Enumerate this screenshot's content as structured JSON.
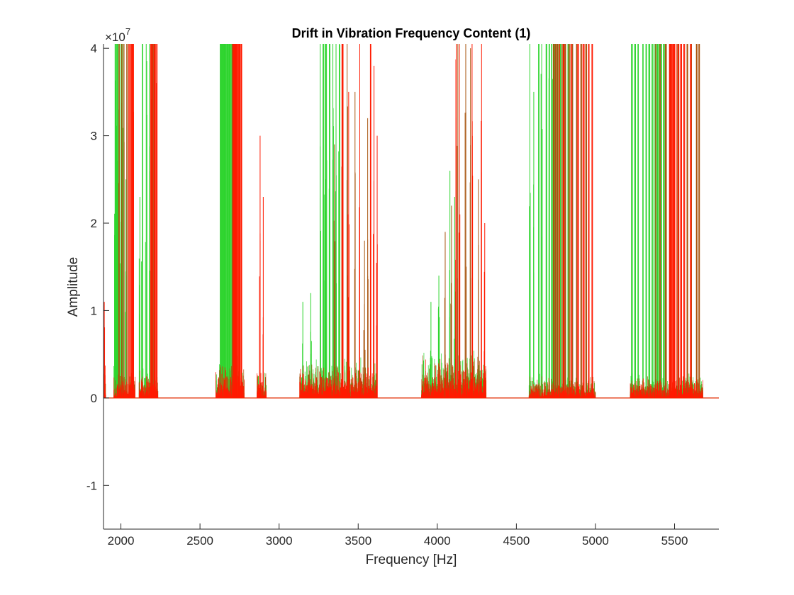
{
  "chart_data": {
    "type": "line",
    "title": "Drift in Vibration Frequency Content (1)",
    "xlabel": "Frequency [Hz]",
    "ylabel": "Amplitude",
    "y_exponent_base": "×10",
    "y_exponent_power": "7",
    "xlim": [
      1890,
      5780
    ],
    "ylim": [
      -1.5,
      4.05
    ],
    "y_scale_factor": 10000000,
    "grid": false,
    "x_ticks": [
      2000,
      2500,
      3000,
      3500,
      4000,
      4500,
      5000,
      5500
    ],
    "x_tick_labels": [
      "2000",
      "2500",
      "3000",
      "3500",
      "4000",
      "4500",
      "5000",
      "5500"
    ],
    "y_ticks": [
      -1,
      0,
      1,
      2,
      3,
      4
    ],
    "y_tick_labels": [
      "-1",
      "0",
      "1",
      "2",
      "3",
      "4"
    ],
    "series_colors": [
      "#2fd52f",
      "#a8550f",
      "#ff1a00"
    ],
    "series": [
      {
        "peaks": [
          [
            1963,
            5.4
          ],
          [
            1968,
            10.9
          ],
          [
            1975,
            8.3
          ],
          [
            1982,
            9.8
          ],
          [
            1990,
            5.2
          ],
          [
            2000,
            7.6
          ],
          [
            2010,
            4.4
          ],
          [
            2032,
            2.5
          ],
          [
            2120,
            2.3
          ],
          [
            2135,
            5.8
          ],
          [
            2160,
            6.3
          ],
          [
            2180,
            4.6
          ],
          [
            2630,
            41.0
          ],
          [
            2638,
            41.0
          ],
          [
            2645,
            41.0
          ],
          [
            2652,
            41.0
          ],
          [
            2660,
            41.0
          ],
          [
            2668,
            41.0
          ],
          [
            2675,
            41.0
          ],
          [
            2682,
            41.0
          ],
          [
            2690,
            41.0
          ],
          [
            2700,
            41.0
          ],
          [
            3150,
            1.1
          ],
          [
            3200,
            1.2
          ],
          [
            3260,
            7.0
          ],
          [
            3280,
            8.6
          ],
          [
            3290,
            4.6
          ],
          [
            3300,
            8.7
          ],
          [
            3318,
            9.5
          ],
          [
            3340,
            6.6
          ],
          [
            3360,
            5.1
          ],
          [
            3380,
            6.0
          ],
          [
            3960,
            1.1
          ],
          [
            4010,
            1.4
          ],
          [
            4080,
            2.6
          ],
          [
            4110,
            2.3
          ],
          [
            4585,
            4.5
          ],
          [
            4610,
            3.5
          ],
          [
            4640,
            10.8
          ],
          [
            4660,
            5.4
          ],
          [
            4690,
            8.6
          ],
          [
            4708,
            8.7
          ],
          [
            4725,
            10.6
          ],
          [
            4740,
            20.2
          ],
          [
            4760,
            20.8
          ],
          [
            4780,
            22.5
          ],
          [
            4800,
            27.0
          ],
          [
            4830,
            26.0
          ],
          [
            5230,
            17.9
          ],
          [
            5250,
            15.4
          ],
          [
            5270,
            21.3
          ],
          [
            5300,
            22.3
          ],
          [
            5320,
            24.5
          ],
          [
            5340,
            18.8
          ],
          [
            5360,
            26.3
          ],
          [
            5378,
            30.5
          ],
          [
            5392,
            41.0
          ],
          [
            5402,
            41.0
          ],
          [
            5418,
            32.1
          ],
          [
            5432,
            41.0
          ],
          [
            5445,
            23.4
          ]
        ]
      },
      {
        "peaks": [
          [
            1990,
            8.2
          ],
          [
            2005,
            9.0
          ],
          [
            2020,
            10.4
          ],
          [
            2040,
            13.0
          ],
          [
            2050,
            10.6
          ],
          [
            2195,
            6.5
          ],
          [
            2210,
            8.3
          ],
          [
            2705,
            41.0
          ],
          [
            2712,
            41.0
          ],
          [
            2720,
            41.0
          ],
          [
            2728,
            41.0
          ],
          [
            3350,
            2.9
          ],
          [
            3400,
            4.5
          ],
          [
            3430,
            4.5
          ],
          [
            3480,
            3.5
          ],
          [
            3540,
            1.8
          ],
          [
            3560,
            3.2
          ],
          [
            4050,
            1.9
          ],
          [
            4090,
            2.2
          ],
          [
            4130,
            4.9
          ],
          [
            4180,
            4.4
          ],
          [
            4210,
            4.0
          ],
          [
            4260,
            2.5
          ],
          [
            4735,
            21.8
          ],
          [
            4745,
            36.8
          ],
          [
            4755,
            25.3
          ],
          [
            4772,
            28.4
          ],
          [
            4790,
            30.2
          ],
          [
            4810,
            22.8
          ],
          [
            4835,
            27.5
          ],
          [
            4855,
            24.8
          ],
          [
            4880,
            29.1
          ],
          [
            4910,
            24.1
          ],
          [
            4940,
            23.2
          ],
          [
            5380,
            41.0
          ],
          [
            5410,
            41.0
          ],
          [
            5445,
            26.5
          ],
          [
            5475,
            23.0
          ],
          [
            5520,
            24.1
          ],
          [
            5580,
            13.5
          ],
          [
            5605,
            14.0
          ],
          [
            5640,
            12.6
          ],
          [
            5655,
            15.3
          ]
        ]
      },
      {
        "peaks": [
          [
            1895,
            1.1
          ],
          [
            2050,
            9.6
          ],
          [
            2065,
            17.4
          ],
          [
            2072,
            18.0
          ],
          [
            2080,
            10.2
          ],
          [
            2190,
            8.2
          ],
          [
            2200,
            15.1
          ],
          [
            2215,
            12.5
          ],
          [
            2225,
            8.0
          ],
          [
            2715,
            41.0
          ],
          [
            2722,
            41.0
          ],
          [
            2730,
            41.0
          ],
          [
            2738,
            41.0
          ],
          [
            2745,
            41.0
          ],
          [
            2752,
            41.0
          ],
          [
            2760,
            41.0
          ],
          [
            2880,
            3.0
          ],
          [
            2900,
            2.3
          ],
          [
            3400,
            7.8
          ],
          [
            3440,
            3.5
          ],
          [
            3510,
            5.0
          ],
          [
            3580,
            7.7
          ],
          [
            3600,
            3.8
          ],
          [
            3620,
            3.0
          ],
          [
            4120,
            6.2
          ],
          [
            4140,
            5.0
          ],
          [
            4220,
            4.6
          ],
          [
            4280,
            5.8
          ],
          [
            4300,
            2.0
          ],
          [
            4770,
            23.0
          ],
          [
            4800,
            31.8
          ],
          [
            4850,
            26.8
          ],
          [
            4890,
            24.4
          ],
          [
            4925,
            29.8
          ],
          [
            4960,
            27.2
          ],
          [
            4980,
            26.5
          ],
          [
            5470,
            41.0
          ],
          [
            5478,
            41.0
          ],
          [
            5490,
            41.0
          ],
          [
            5500,
            41.0
          ],
          [
            5510,
            41.0
          ],
          [
            5525,
            41.0
          ],
          [
            5540,
            41.0
          ],
          [
            5560,
            16.5
          ],
          [
            5600,
            13.9
          ]
        ]
      }
    ],
    "clusters": [
      [
        1890,
        1905,
        0.6
      ],
      [
        1955,
        2090,
        0.4
      ],
      [
        2115,
        2235,
        0.4
      ],
      [
        2600,
        2780,
        0.5
      ],
      [
        2860,
        2920,
        0.4
      ],
      [
        3130,
        3620,
        0.5
      ],
      [
        3900,
        4310,
        0.6
      ],
      [
        4580,
        5000,
        0.3
      ],
      [
        5220,
        5680,
        0.3
      ]
    ]
  }
}
